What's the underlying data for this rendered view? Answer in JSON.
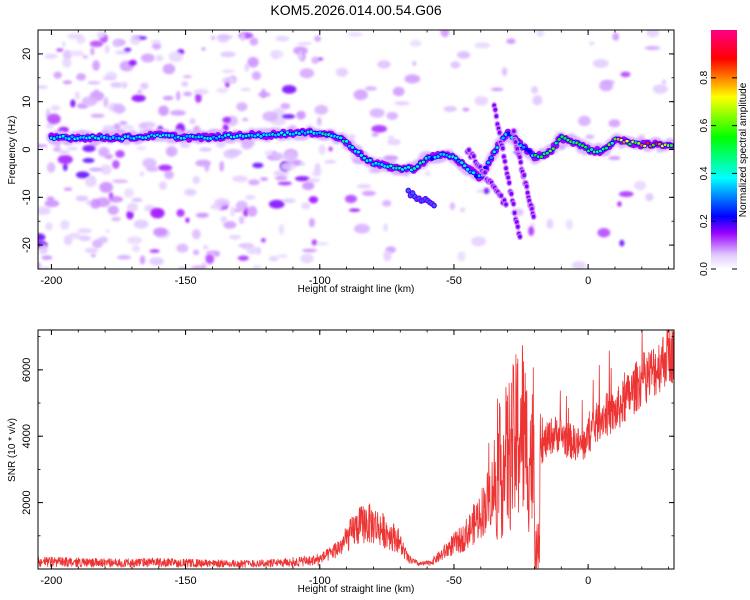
{
  "title": "KOM5.2026.014.00.54.G06",
  "chart_data": [
    {
      "type": "heatmap",
      "xlabel": "Height of straight line (km)",
      "ylabel": "Frequency (Hz)",
      "xlim": [
        -205,
        32
      ],
      "ylim": [
        -25,
        25
      ],
      "xticks": [
        -200,
        -150,
        -100,
        -50,
        0
      ],
      "yticks": [
        -20,
        -10,
        0,
        10,
        20
      ],
      "colorbar": {
        "label": "Normalized spectral amplitude",
        "range": [
          0,
          1
        ],
        "ticks": [
          "0.0",
          "0.2",
          "0.4",
          "0.6",
          "0.8"
        ],
        "colors": [
          "#ffffff",
          "#e0c8ff",
          "#9a00ff",
          "#0000ff",
          "#00ffff",
          "#00ff00",
          "#ffff00",
          "#ff0000",
          "#ff0088"
        ]
      },
      "ridge": {
        "x": [
          -198,
          -190,
          -180,
          -170,
          -160,
          -150,
          -140,
          -130,
          -120,
          -110,
          -100,
          -95,
          -90,
          -85,
          -80,
          -75,
          -70,
          -65,
          -60,
          -55,
          -50,
          -45,
          -40,
          -35,
          -30,
          -25,
          -20,
          -15,
          -10,
          -5,
          0,
          5,
          10,
          15,
          20,
          25,
          30
        ],
        "y": [
          2.5,
          2.5,
          2.5,
          2.5,
          3,
          2.5,
          2.5,
          3,
          3,
          3.5,
          3.5,
          3,
          1.5,
          -1,
          -3,
          -3.5,
          -4,
          -4,
          -2,
          -1,
          -1.5,
          -4,
          -6,
          -0.5,
          3.5,
          1,
          -1.5,
          -1,
          2.5,
          1.5,
          0,
          -0.5,
          2,
          1.5,
          1,
          1,
          1
        ]
      }
    },
    {
      "type": "line",
      "xlabel": "Height of straight line (km)",
      "ylabel": "SNR (10 * v/v)",
      "xlim": [
        -205,
        32
      ],
      "ylim": [
        0,
        7200
      ],
      "xticks": [
        -200,
        -150,
        -100,
        -50,
        0
      ],
      "yticks": [
        2000,
        4000,
        6000
      ],
      "line_color": "#ee3333",
      "series": [
        {
          "x": [
            -205,
            -190,
            -175,
            -160,
            -145,
            -130,
            -115,
            -102,
            -97,
            -92,
            -87,
            -83,
            -79,
            -75,
            -71,
            -67,
            -63,
            -59,
            -55,
            -51,
            -47,
            -43,
            -39,
            -35,
            -31,
            -27,
            -25,
            -23,
            -20,
            -17,
            -14,
            -11,
            -8,
            -5,
            -2,
            0,
            5,
            10,
            15,
            20,
            25,
            30
          ],
          "y": [
            220,
            200,
            180,
            200,
            170,
            160,
            180,
            250,
            420,
            700,
            1200,
            1400,
            1300,
            1100,
            900,
            300,
            150,
            180,
            400,
            700,
            900,
            1300,
            1800,
            2500,
            3200,
            3800,
            4500,
            3600,
            3200,
            3700,
            4000,
            4100,
            3900,
            3800,
            3700,
            4000,
            4600,
            4700,
            5200,
            5700,
            6000,
            6500
          ]
        }
      ]
    }
  ]
}
